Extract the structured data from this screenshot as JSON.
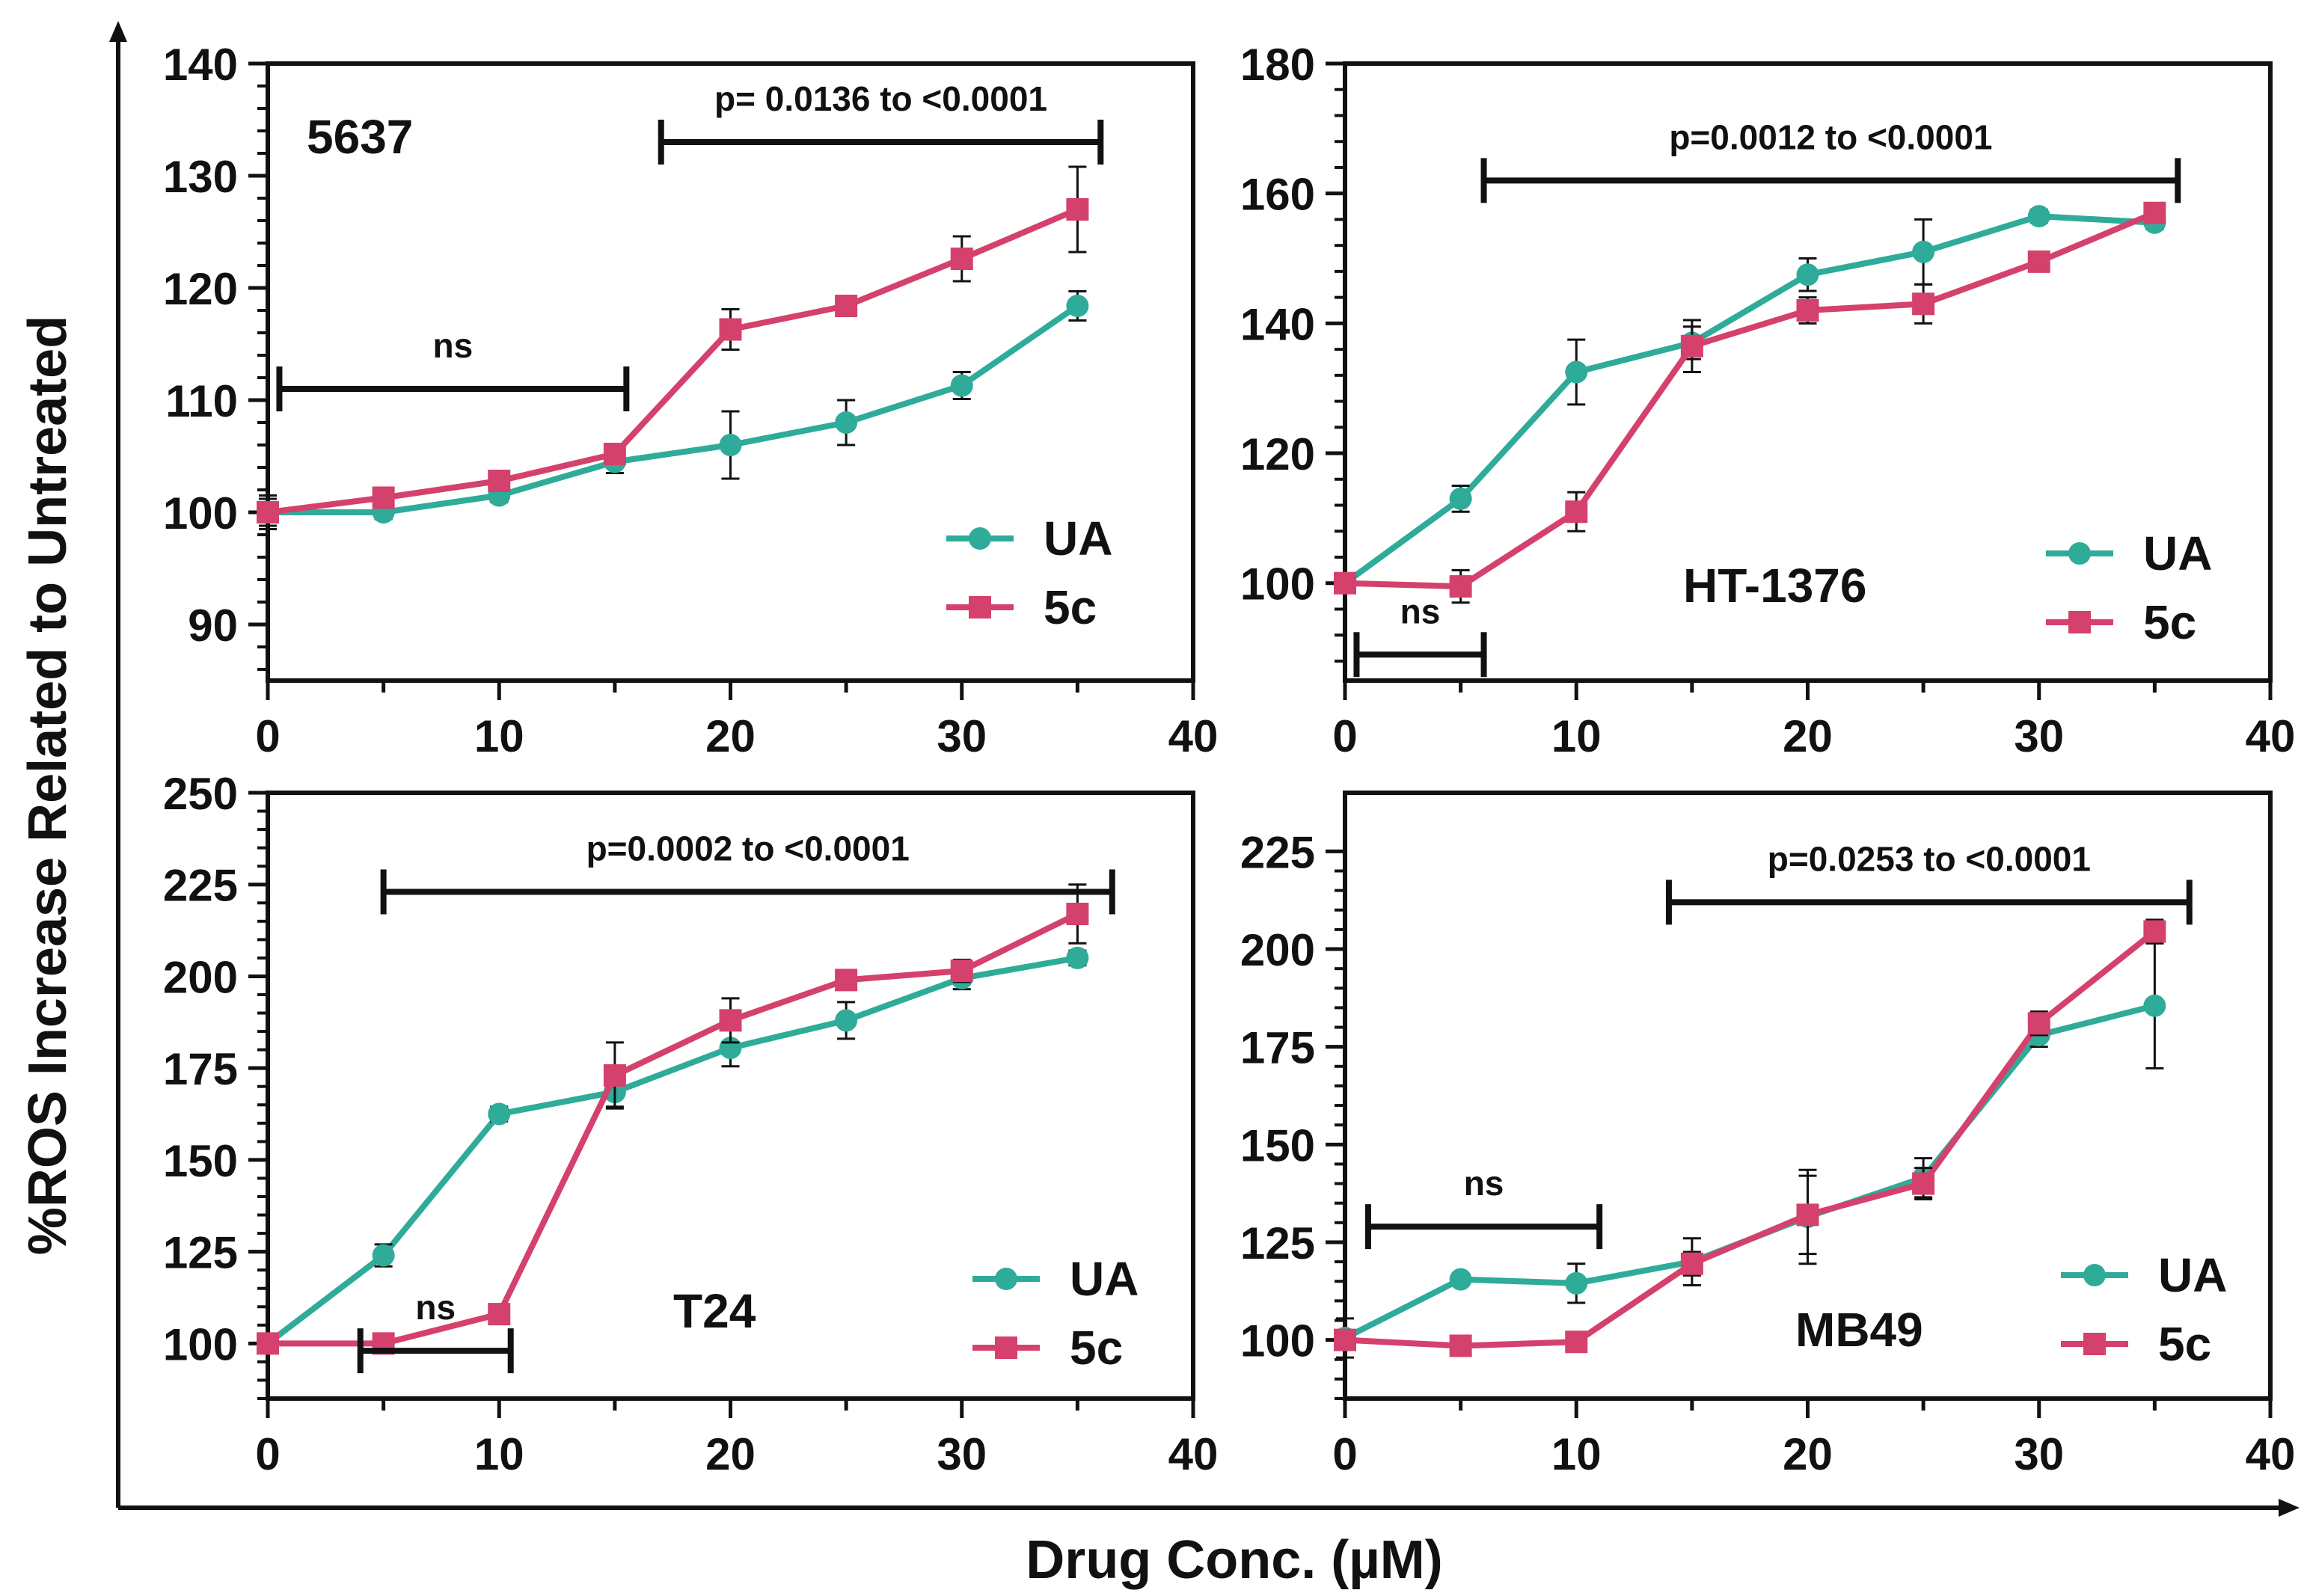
{
  "figure": {
    "ylabel": "%ROS Increase Related to Untreated",
    "xlabel": "Drug Conc. (µM)",
    "colors": {
      "UA": "#2fab9a",
      "5c": "#d4416c",
      "axis": "#111111"
    }
  },
  "chart_data": [
    {
      "type": "line",
      "cell_line": "5637",
      "xlim": [
        0,
        40
      ],
      "ylim": [
        85,
        140
      ],
      "xticks": [
        0,
        10,
        20,
        30,
        40
      ],
      "yticks": [
        90,
        100,
        110,
        120,
        130,
        140
      ],
      "legend": [
        "UA",
        "5c"
      ],
      "x": [
        0,
        5,
        10,
        15,
        20,
        25,
        30,
        35
      ],
      "series": [
        {
          "name": "UA",
          "values": [
            100,
            100,
            101.5,
            104.5,
            106,
            108,
            111.3,
            118.4
          ],
          "err": [
            1.5,
            0.6,
            0.6,
            1.0,
            3.0,
            2.0,
            1.2,
            1.3
          ]
        },
        {
          "name": "5c",
          "values": [
            100,
            101.3,
            102.8,
            105.2,
            116.3,
            118.4,
            122.6,
            127
          ],
          "err": [
            1.2,
            0.5,
            0.5,
            0.6,
            1.8,
            0.5,
            2.0,
            3.8
          ]
        }
      ],
      "brackets": [
        {
          "label": "ns",
          "x1": 0.5,
          "x2": 15.5,
          "y": 111
        },
        {
          "label": "p= 0.0136 to <0.0001",
          "x1": 17,
          "x2": 36,
          "y": 133
        }
      ]
    },
    {
      "type": "line",
      "cell_line": "HT-1376",
      "xlim": [
        0,
        40
      ],
      "ylim": [
        85,
        180
      ],
      "xticks": [
        0,
        10,
        20,
        30,
        40
      ],
      "yticks": [
        100,
        120,
        140,
        160,
        180
      ],
      "legend": [
        "UA",
        "5c"
      ],
      "x": [
        0,
        5,
        10,
        15,
        20,
        25,
        30,
        35
      ],
      "series": [
        {
          "name": "UA",
          "values": [
            100,
            113,
            132.5,
            137,
            147.5,
            151,
            156.5,
            155.5
          ],
          "err": [
            1.0,
            2.0,
            5.0,
            2.5,
            2.5,
            5.0,
            1.0,
            1.0
          ]
        },
        {
          "name": "5c",
          "values": [
            100,
            99.5,
            111,
            136.5,
            142,
            143,
            149.5,
            157
          ],
          "err": [
            1.0,
            2.5,
            3.0,
            4.0,
            2.0,
            3.0,
            1.5,
            1.0
          ]
        }
      ],
      "brackets": [
        {
          "label": "ns",
          "x1": 0.5,
          "x2": 6,
          "y": 89
        },
        {
          "label": "p=0.0012 to <0.0001",
          "x1": 6,
          "x2": 36,
          "y": 162
        }
      ]
    },
    {
      "type": "line",
      "cell_line": "T24",
      "xlim": [
        0,
        40
      ],
      "ylim": [
        85,
        250
      ],
      "xticks": [
        0,
        10,
        20,
        30,
        40
      ],
      "yticks": [
        100,
        125,
        150,
        175,
        200,
        225,
        250
      ],
      "legend": [
        "UA",
        "5c"
      ],
      "x": [
        0,
        5,
        10,
        15,
        20,
        25,
        30,
        35
      ],
      "series": [
        {
          "name": "UA",
          "values": [
            100,
            124,
            162.5,
            168.5,
            180.5,
            188,
            199.5,
            205
          ],
          "err": [
            1.5,
            3.0,
            2.0,
            4.0,
            5.0,
            5.0,
            3.0,
            2.0
          ]
        },
        {
          "name": "5c",
          "values": [
            100,
            100,
            108,
            173,
            188,
            199,
            201.5,
            217
          ],
          "err": [
            1.0,
            1.0,
            1.5,
            9.0,
            6.0,
            2.0,
            3.0,
            8.0
          ]
        }
      ],
      "brackets": [
        {
          "label": "ns",
          "x1": 4,
          "x2": 10.5,
          "y": 98
        },
        {
          "label": "p=0.0002 to <0.0001",
          "x1": 5,
          "x2": 36.5,
          "y": 223
        }
      ]
    },
    {
      "type": "line",
      "cell_line": "MB49",
      "xlim": [
        0,
        40
      ],
      "ylim": [
        85,
        240
      ],
      "xticks": [
        0,
        10,
        20,
        30,
        40
      ],
      "yticks": [
        100,
        125,
        150,
        175,
        200,
        225
      ],
      "legend": [
        "UA",
        "5c"
      ],
      "x": [
        0,
        5,
        10,
        15,
        20,
        25,
        30,
        35
      ],
      "series": [
        {
          "name": "UA",
          "values": [
            100.5,
            115.5,
            114.5,
            120,
            131.5,
            141.5,
            178,
            185.5
          ],
          "err": [
            5.0,
            1.0,
            5.0,
            6.0,
            12.0,
            5.0,
            3.0,
            16.0
          ]
        },
        {
          "name": "5c",
          "values": [
            100,
            98.5,
            99.5,
            119.5,
            132,
            140,
            181,
            204.5
          ],
          "err": [
            1.0,
            1.0,
            1.0,
            3.0,
            10.0,
            4.0,
            3.0,
            3.0
          ]
        }
      ],
      "brackets": [
        {
          "label": "ns",
          "x1": 1,
          "x2": 11,
          "y": 129
        },
        {
          "label": "p=0.0253 to <0.0001",
          "x1": 14,
          "x2": 36.5,
          "y": 212
        }
      ]
    }
  ]
}
